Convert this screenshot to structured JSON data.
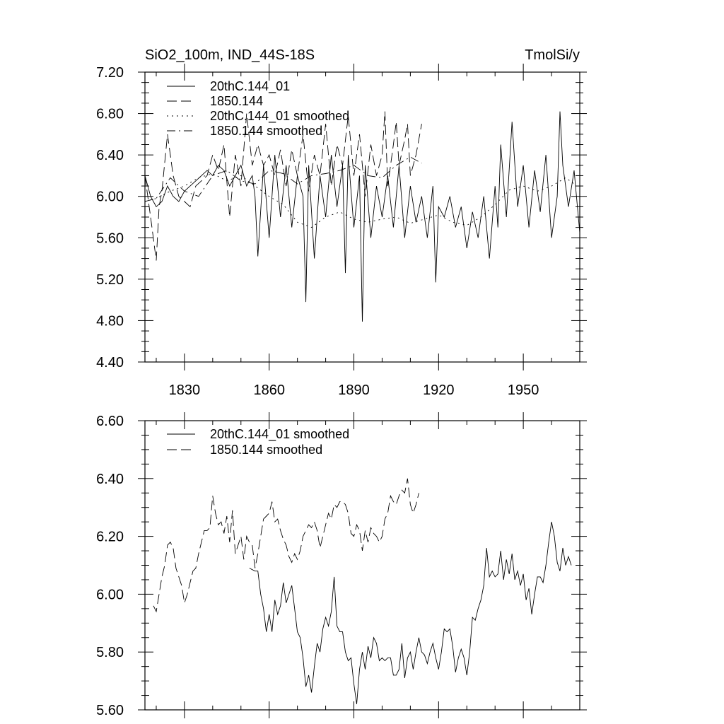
{
  "chart_data": [
    {
      "type": "line",
      "title_left": "SiO2_100m, IND_44S-18S",
      "title_right": "TmolSi/y",
      "xlabel": "",
      "ylabel": "",
      "xlim": [
        1816,
        1970
      ],
      "ylim": [
        4.4,
        7.2
      ],
      "xticks": [
        1830,
        1860,
        1890,
        1920,
        1950
      ],
      "xtick_labels": [
        "1830",
        "1860",
        "1890",
        "1920",
        "1950"
      ],
      "yticks": [
        4.4,
        4.8,
        5.2,
        5.6,
        6.0,
        6.4,
        6.8,
        7.2
      ],
      "ytick_labels": [
        "4.40",
        "4.80",
        "5.20",
        "5.60",
        "6.00",
        "6.40",
        "6.80",
        "7.20"
      ],
      "legend_position": "top-left",
      "series": [
        {
          "name": "20thC.144_01",
          "dash": "solid",
          "x": [
            1816,
            1818,
            1820,
            1822,
            1824,
            1826,
            1828,
            1830,
            1832,
            1834,
            1836,
            1838,
            1840,
            1842,
            1844,
            1846,
            1848,
            1850,
            1852,
            1854,
            1855,
            1856,
            1858,
            1860,
            1862,
            1864,
            1866,
            1868,
            1870,
            1872,
            1873,
            1874,
            1876,
            1878,
            1880,
            1882,
            1884,
            1886,
            1887,
            1888,
            1890,
            1892,
            1893,
            1894,
            1896,
            1898,
            1900,
            1902,
            1904,
            1906,
            1908,
            1910,
            1912,
            1914,
            1916,
            1918,
            1919,
            1920,
            1922,
            1924,
            1926,
            1928,
            1930,
            1932,
            1934,
            1936,
            1938,
            1940,
            1941,
            1942,
            1944,
            1946,
            1948,
            1950,
            1952,
            1954,
            1956,
            1958,
            1960,
            1962,
            1963,
            1964,
            1966,
            1968,
            1970
          ],
          "y": [
            6.2,
            6.0,
            5.9,
            5.95,
            6.1,
            6.0,
            5.95,
            6.05,
            6.1,
            6.15,
            6.2,
            6.25,
            6.2,
            6.3,
            6.25,
            6.1,
            6.2,
            6.3,
            6.1,
            6.2,
            6.0,
            5.42,
            6.3,
            5.6,
            6.4,
            5.8,
            6.3,
            5.7,
            6.2,
            6.0,
            4.98,
            6.3,
            5.4,
            6.2,
            5.8,
            6.4,
            5.9,
            6.3,
            5.26,
            6.4,
            5.7,
            6.2,
            4.79,
            6.3,
            5.6,
            6.1,
            5.8,
            6.2,
            5.7,
            6.3,
            5.6,
            6.1,
            5.75,
            6.0,
            5.6,
            6.1,
            5.17,
            5.9,
            5.8,
            6.0,
            5.7,
            5.9,
            5.5,
            5.85,
            5.6,
            6.0,
            5.4,
            6.1,
            5.7,
            6.5,
            5.8,
            6.72,
            5.9,
            6.3,
            5.7,
            6.25,
            5.85,
            6.4,
            5.6,
            6.0,
            6.82,
            6.3,
            5.9,
            6.25,
            5.65
          ]
        },
        {
          "name": "1850.144",
          "dash": "long-dash",
          "x": [
            1816,
            1818,
            1820,
            1821,
            1822,
            1824,
            1826,
            1828,
            1830,
            1832,
            1834,
            1836,
            1838,
            1840,
            1842,
            1844,
            1846,
            1848,
            1850,
            1852,
            1854,
            1856,
            1858,
            1860,
            1862,
            1864,
            1866,
            1868,
            1870,
            1872,
            1874,
            1876,
            1878,
            1880,
            1882,
            1884,
            1886,
            1888,
            1890,
            1892,
            1894,
            1896,
            1898,
            1900,
            1901,
            1902,
            1904,
            1905,
            1906,
            1908,
            1909,
            1910,
            1912,
            1914
          ],
          "y": [
            6.2,
            5.8,
            5.38,
            5.9,
            6.05,
            6.6,
            6.2,
            6.0,
            5.95,
            5.9,
            6.1,
            6.15,
            6.2,
            6.4,
            6.25,
            6.5,
            5.8,
            6.4,
            6.1,
            6.8,
            6.3,
            6.5,
            6.3,
            6.4,
            6.2,
            6.45,
            6.1,
            6.45,
            6.2,
            6.6,
            6.05,
            6.4,
            6.2,
            6.7,
            6.1,
            6.5,
            6.3,
            6.78,
            6.2,
            6.6,
            6.0,
            6.5,
            6.2,
            6.4,
            6.82,
            6.1,
            6.5,
            6.72,
            6.3,
            6.55,
            6.7,
            6.2,
            6.4,
            6.7
          ]
        },
        {
          "name": "20thC.144_01 smoothed",
          "dash": "dotted",
          "x": [
            1816,
            1820,
            1825,
            1830,
            1835,
            1840,
            1845,
            1850,
            1855,
            1860,
            1865,
            1870,
            1875,
            1880,
            1885,
            1890,
            1895,
            1900,
            1905,
            1910,
            1915,
            1920,
            1925,
            1930,
            1935,
            1940,
            1945,
            1950,
            1955,
            1960,
            1965,
            1968
          ],
          "y": [
            5.95,
            5.98,
            6.05,
            6.1,
            6.18,
            6.22,
            6.15,
            6.2,
            6.1,
            6.0,
            5.92,
            5.75,
            5.7,
            5.8,
            5.85,
            5.78,
            5.75,
            5.78,
            5.8,
            5.74,
            5.78,
            5.82,
            5.75,
            5.72,
            5.8,
            5.92,
            6.06,
            6.1,
            6.05,
            6.1,
            6.18,
            6.12
          ]
        },
        {
          "name": "1850.144 smoothed",
          "dash": "dash-dot",
          "x": [
            1816,
            1820,
            1825,
            1830,
            1835,
            1840,
            1845,
            1850,
            1855,
            1860,
            1865,
            1870,
            1875,
            1880,
            1885,
            1890,
            1895,
            1900,
            1905,
            1910,
            1914
          ],
          "y": [
            5.95,
            5.98,
            6.18,
            6.05,
            6.0,
            6.2,
            6.25,
            6.15,
            6.12,
            6.25,
            6.22,
            6.12,
            6.2,
            6.22,
            6.25,
            6.3,
            6.2,
            6.18,
            6.3,
            6.38,
            6.32
          ]
        }
      ]
    },
    {
      "type": "line",
      "title_left": "",
      "title_right": "",
      "xlabel": "",
      "ylabel": "",
      "xlim": [
        1816,
        1970
      ],
      "ylim": [
        5.6,
        6.6
      ],
      "xticks": [
        1830,
        1860,
        1890,
        1920,
        1950
      ],
      "xtick_labels": [],
      "yticks": [
        5.6,
        5.8,
        6.0,
        6.2,
        6.4,
        6.6
      ],
      "ytick_labels": [
        "5.60",
        "5.80",
        "6.00",
        "6.20",
        "6.40",
        "6.60"
      ],
      "legend_position": "top-left",
      "series": [
        {
          "name": "20thC.144_01 smoothed",
          "dash": "solid",
          "x": [
            1853,
            1855,
            1856,
            1857,
            1858,
            1859,
            1860,
            1861,
            1862,
            1863,
            1864,
            1865,
            1866,
            1867,
            1868,
            1869,
            1870,
            1871,
            1872,
            1873,
            1874,
            1875,
            1876,
            1877,
            1878,
            1879,
            1880,
            1881,
            1882,
            1883,
            1884,
            1885,
            1886,
            1887,
            1888,
            1889,
            1890,
            1891,
            1892,
            1893,
            1894,
            1895,
            1896,
            1897,
            1898,
            1899,
            1900,
            1901,
            1902,
            1903,
            1904,
            1905,
            1906,
            1907,
            1908,
            1909,
            1910,
            1911,
            1912,
            1913,
            1914,
            1915,
            1916,
            1917,
            1918,
            1919,
            1920,
            1921,
            1922,
            1923,
            1924,
            1925,
            1926,
            1927,
            1928,
            1929,
            1930,
            1931,
            1932,
            1933,
            1934,
            1935,
            1936,
            1937,
            1938,
            1939,
            1940,
            1941,
            1942,
            1943,
            1944,
            1945,
            1946,
            1947,
            1948,
            1949,
            1950,
            1951,
            1952,
            1953,
            1954,
            1955,
            1956,
            1957,
            1958,
            1959,
            1960,
            1961,
            1962,
            1963,
            1964,
            1965,
            1966,
            1967
          ],
          "y": [
            6.09,
            6.08,
            6.08,
            6.0,
            5.95,
            5.87,
            5.93,
            5.87,
            5.98,
            5.93,
            5.96,
            6.04,
            5.97,
            6.0,
            6.03,
            5.95,
            5.87,
            5.85,
            5.78,
            5.68,
            5.72,
            5.66,
            5.75,
            5.83,
            5.8,
            5.88,
            5.92,
            5.89,
            5.94,
            6.06,
            5.89,
            5.87,
            5.87,
            5.8,
            5.77,
            5.78,
            5.69,
            5.62,
            5.74,
            5.8,
            5.74,
            5.82,
            5.78,
            5.85,
            5.83,
            5.77,
            5.78,
            5.77,
            5.78,
            5.78,
            5.72,
            5.72,
            5.74,
            5.83,
            5.71,
            5.78,
            5.8,
            5.74,
            5.8,
            5.85,
            5.8,
            5.79,
            5.76,
            5.8,
            5.83,
            5.78,
            5.74,
            5.8,
            5.88,
            5.87,
            5.88,
            5.82,
            5.73,
            5.78,
            5.81,
            5.78,
            5.72,
            5.8,
            5.92,
            5.91,
            5.95,
            5.98,
            6.03,
            6.16,
            6.06,
            6.08,
            6.06,
            6.07,
            6.15,
            6.05,
            6.12,
            6.07,
            6.14,
            6.05,
            6.08,
            6.03,
            6.07,
            5.98,
            6.02,
            5.93,
            6.0,
            6.06,
            6.06,
            6.04,
            6.1,
            6.18,
            6.25,
            6.2,
            6.11,
            6.08,
            6.16,
            6.1,
            6.13,
            6.1
          ],
          "hidden_leading": true
        },
        {
          "name": "1850.144 smoothed",
          "dash": "long-dash",
          "x": [
            1819,
            1820,
            1821,
            1822,
            1823,
            1824,
            1825,
            1826,
            1827,
            1828,
            1829,
            1830,
            1831,
            1832,
            1833,
            1834,
            1835,
            1836,
            1837,
            1838,
            1839,
            1840,
            1841,
            1842,
            1843,
            1844,
            1845,
            1846,
            1847,
            1848,
            1849,
            1850,
            1851,
            1852,
            1853,
            1854,
            1855,
            1856,
            1857,
            1858,
            1859,
            1860,
            1861,
            1862,
            1863,
            1864,
            1865,
            1866,
            1867,
            1868,
            1869,
            1870,
            1871,
            1872,
            1873,
            1874,
            1875,
            1876,
            1877,
            1878,
            1879,
            1880,
            1881,
            1882,
            1883,
            1884,
            1885,
            1886,
            1887,
            1888,
            1889,
            1890,
            1891,
            1892,
            1893,
            1894,
            1895,
            1896,
            1897,
            1898,
            1899,
            1900,
            1901,
            1902,
            1903,
            1904,
            1905,
            1906,
            1907,
            1908,
            1909,
            1910,
            1911,
            1912,
            1913
          ],
          "y": [
            5.96,
            5.94,
            6.0,
            6.06,
            6.1,
            6.17,
            6.18,
            6.16,
            6.09,
            6.06,
            6.03,
            5.97,
            6.0,
            6.04,
            6.08,
            6.09,
            6.14,
            6.18,
            6.22,
            6.22,
            6.23,
            6.34,
            6.28,
            6.24,
            6.25,
            6.21,
            6.27,
            6.18,
            6.29,
            6.14,
            6.17,
            6.2,
            6.12,
            6.2,
            6.18,
            6.17,
            6.09,
            6.14,
            6.2,
            6.26,
            6.27,
            6.28,
            6.32,
            6.25,
            6.26,
            6.22,
            6.19,
            6.17,
            6.13,
            6.11,
            6.14,
            6.12,
            6.15,
            6.2,
            6.22,
            6.24,
            6.23,
            6.25,
            6.22,
            6.16,
            6.2,
            6.24,
            6.28,
            6.26,
            6.31,
            6.3,
            6.32,
            6.32,
            6.31,
            6.28,
            6.21,
            6.2,
            6.24,
            6.22,
            6.15,
            6.22,
            6.18,
            6.23,
            6.21,
            6.2,
            6.18,
            6.2,
            6.26,
            6.28,
            6.34,
            6.32,
            6.31,
            6.34,
            6.36,
            6.35,
            6.4,
            6.31,
            6.28,
            6.31,
            6.35
          ],
          "hidden_leading": false
        }
      ]
    }
  ]
}
